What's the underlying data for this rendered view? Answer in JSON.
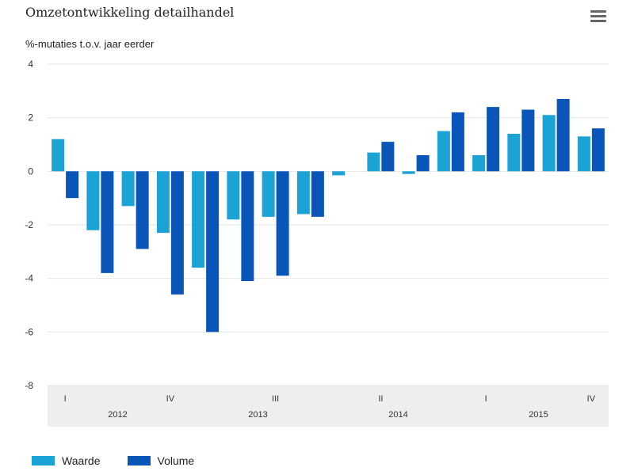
{
  "header": {
    "title": "Omzetontwikkeling detailhandel",
    "menu_icon": "hamburger-menu-icon"
  },
  "colors": {
    "waarde": "#1ba3d6",
    "volume": "#0a55b8",
    "grid": "#e6e6e6",
    "category_band": "#eeeeee",
    "axis_text": "#333333"
  },
  "chart_data": {
    "type": "bar",
    "title": "Omzetontwikkeling detailhandel",
    "subtitle": "%-mutaties t.o.v. jaar eerder",
    "ylim": [
      -8,
      4
    ],
    "yticks": [
      4,
      2,
      0,
      -2,
      -4,
      -6,
      -8
    ],
    "grid": true,
    "legend_position": "bottom-left",
    "categories": [
      "2012 I",
      "2012 II",
      "2012 III",
      "2012 IV",
      "2013 I",
      "2013 II",
      "2013 III",
      "2013 IV",
      "2014 I",
      "2014 II",
      "2014 III",
      "2014 IV",
      "2015 I",
      "2015 II",
      "2015 III",
      "2015 IV"
    ],
    "quarter_labels": [
      "I",
      "",
      "",
      "IV",
      "",
      "",
      "III",
      "",
      "",
      "II",
      "",
      "",
      "I",
      "",
      "",
      "IV"
    ],
    "year_labels": [
      {
        "year": "2012",
        "center_index": 1.5
      },
      {
        "year": "2013",
        "center_index": 5.5
      },
      {
        "year": "2014",
        "center_index": 9.5
      },
      {
        "year": "2015",
        "center_index": 13.5
      }
    ],
    "series": [
      {
        "name": "Waarde",
        "color": "#1ba3d6",
        "values": [
          1.2,
          -2.2,
          -1.3,
          -2.3,
          -3.6,
          -1.8,
          -1.7,
          -1.6,
          -0.15,
          0.7,
          -0.1,
          1.5,
          0.6,
          1.4,
          2.1,
          1.3
        ]
      },
      {
        "name": "Volume",
        "color": "#0a55b8",
        "values": [
          -1.0,
          -3.8,
          -2.9,
          -4.6,
          -6.0,
          -4.1,
          -3.9,
          -1.7,
          0,
          1.1,
          0.6,
          2.2,
          2.4,
          2.3,
          2.7,
          1.6
        ]
      }
    ]
  },
  "legend": {
    "items": [
      {
        "label": "Waarde",
        "color": "#1ba3d6"
      },
      {
        "label": "Volume",
        "color": "#0a55b8"
      }
    ]
  }
}
